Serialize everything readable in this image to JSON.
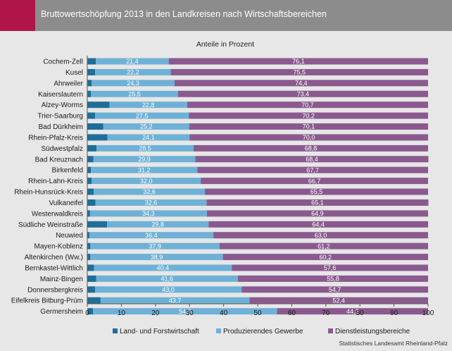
{
  "header": {
    "title": "Bruttowertschöpfung 2013 in den Landkreisen nach Wirtschaftsbereichen"
  },
  "colors": {
    "title_accent": "#b0154a",
    "title_bar": "#8c8c8c",
    "background": "#e7e7e7"
  },
  "chart_data": {
    "type": "bar",
    "orientation": "horizontal",
    "stacked": true,
    "subtitle": "Anteile in Prozent",
    "xlim": [
      0,
      100
    ],
    "xticks": [
      0,
      10,
      20,
      30,
      40,
      50,
      60,
      70,
      80,
      90,
      100
    ],
    "grid": false,
    "legend_position": "bottom",
    "categories": [
      "Cochem-Zell",
      "Kusel",
      "Ahrweiler",
      "Kaiserslautern",
      "Alzey-Worms",
      "Trier-Saarburg",
      "Bad Dürkheim",
      "Rhein-Pfalz-Kreis",
      "Südwestpfalz",
      "Bad Kreuznach",
      "Birkenfeld",
      "Rhein-Lahn-Kreis",
      "Rhein-Hunsrück-Kreis",
      "Vulkaneifel",
      "Westerwaldkreis",
      "Südliche Weinstraße",
      "Neuwied",
      "Mayen-Koblenz",
      "Altenkirchen (Ww.)",
      "Bernkastel-Wittlich",
      "Mainz-Bingen",
      "Donnersbergkreis",
      "Eifelkreis Bitburg-Prüm",
      "Germersheim"
    ],
    "series": [
      {
        "name": "Land- und Forstwirtschaft",
        "color": "#1f6e9a",
        "values": [
          2.5,
          2.3,
          1.3,
          1.1,
          6.5,
          2.3,
          4.7,
          5.9,
          2.7,
          1.8,
          1.1,
          1.3,
          1.9,
          2.4,
          0.8,
          5.8,
          0.6,
          0.9,
          0.9,
          2.0,
          2.6,
          2.3,
          3.9,
          1.7
        ],
        "labels": [
          "",
          "",
          "",
          "",
          "",
          "",
          "",
          "",
          "",
          "",
          "",
          "",
          "",
          "",
          "",
          "",
          "",
          "",
          "",
          "",
          "",
          "",
          "",
          ""
        ]
      },
      {
        "name": "Produzierendes Gewerbe",
        "color": "#6fb1d6",
        "values": [
          21.4,
          22.2,
          24.3,
          25.5,
          22.8,
          27.5,
          25.2,
          24.1,
          28.5,
          29.9,
          31.2,
          32.0,
          32.6,
          32.6,
          34.3,
          29.8,
          36.4,
          37.9,
          38.9,
          40.4,
          41.6,
          43.0,
          43.7,
          54.0
        ],
        "labels": [
          "21,4",
          "22,2",
          "24,3",
          "25,5",
          "22,8",
          "27,5",
          "25,2",
          "24,1",
          "28,5",
          "29,9",
          "31,2",
          "32,0",
          "32,6",
          "32,6",
          "34,3",
          "29,8",
          "36,4",
          "37,9",
          "38,9",
          "40,4",
          "41,6",
          "43,0",
          "43,7",
          "54,0"
        ]
      },
      {
        "name": "Dienstleistungsbereiche",
        "color": "#8a5a8f",
        "values": [
          76.1,
          75.5,
          74.4,
          73.4,
          70.7,
          70.2,
          70.1,
          70.0,
          68.8,
          68.4,
          67.7,
          66.7,
          65.5,
          65.1,
          64.9,
          64.4,
          63.0,
          61.2,
          60.2,
          57.6,
          55.8,
          54.7,
          52.4,
          44.3
        ],
        "labels": [
          "76,1",
          "75,5",
          "74,4",
          "73,4",
          "70,7",
          "70,2",
          "70,1",
          "70,0",
          "68,8",
          "68,4",
          "67,7",
          "66,7",
          "65,5",
          "65,1",
          "64,9",
          "64,4",
          "63,0",
          "61,2",
          "60,2",
          "57,6",
          "55,8",
          "54,7",
          "52,4",
          "44,3"
        ]
      }
    ]
  },
  "footer": {
    "source": "Statistisches Landesamt Rheinland-Pfalz"
  }
}
